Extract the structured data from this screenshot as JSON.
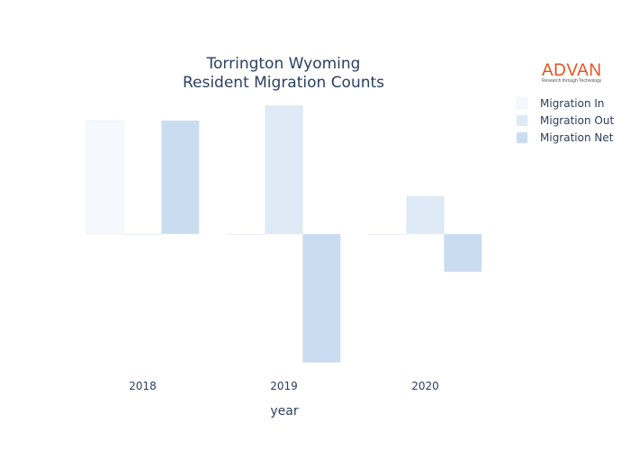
{
  "logo": {
    "name": "ADVAN",
    "tagline": "Research through Technology"
  },
  "chart_data": {
    "type": "bar",
    "title": [
      "Torrington Wyoming",
      "Resident Migration Counts"
    ],
    "xlabel": "year",
    "ylabel": "",
    "categories": [
      "2018",
      "2019",
      "2020"
    ],
    "series": [
      {
        "name": "Migration In",
        "color": "#f5f9fd",
        "values": [
          3,
          0,
          0
        ]
      },
      {
        "name": "Migration Out",
        "color": "#deeaf6",
        "values": [
          0,
          3.4,
          1
        ]
      },
      {
        "name": "Migration Net",
        "color": "#c9dcf0",
        "values": [
          3,
          -3.4,
          -1
        ]
      }
    ],
    "ylim": [
      -3.5,
      3.5
    ],
    "grid": false,
    "legend_position": "top-right"
  }
}
